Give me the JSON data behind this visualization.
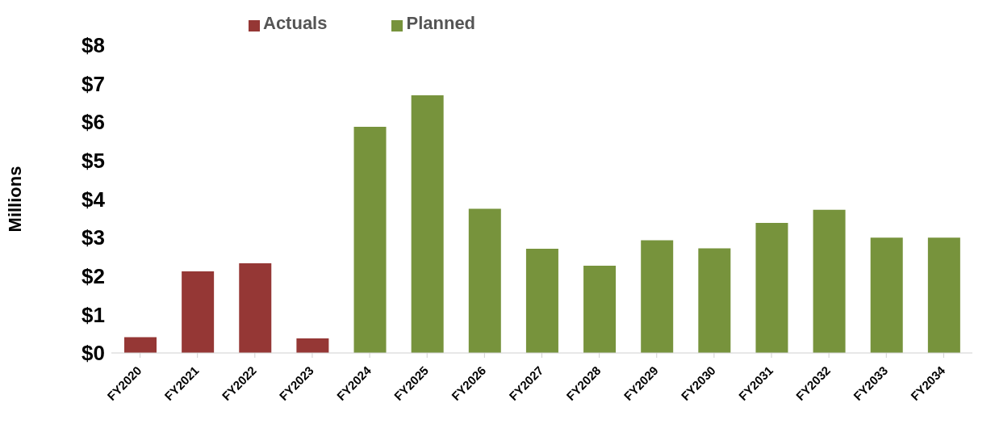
{
  "chart_data": {
    "type": "bar",
    "ylabel": "Millions",
    "categories": [
      "FY2020",
      "FY2021",
      "FY2022",
      "FY2023",
      "FY2024",
      "FY2025",
      "FY2026",
      "FY2027",
      "FY2028",
      "FY2029",
      "FY2030",
      "FY2031",
      "FY2032",
      "FY2033",
      "FY2034"
    ],
    "series": [
      {
        "name": "Actuals",
        "color": "#953735",
        "values": [
          0.41,
          2.12,
          2.33,
          0.38,
          null,
          null,
          null,
          null,
          null,
          null,
          null,
          null,
          null,
          null,
          null
        ]
      },
      {
        "name": "Planned",
        "color": "#77933c",
        "values": [
          null,
          null,
          null,
          null,
          5.88,
          6.7,
          3.75,
          2.71,
          2.27,
          2.93,
          2.72,
          3.38,
          3.72,
          3.0,
          3.0
        ]
      }
    ],
    "stacked": true,
    "ylim": [
      0,
      8
    ],
    "yticks": [
      {
        "value": 0,
        "label": "$0"
      },
      {
        "value": 1,
        "label": "$1"
      },
      {
        "value": 2,
        "label": "$2"
      },
      {
        "value": 3,
        "label": "$3"
      },
      {
        "value": 4,
        "label": "$4"
      },
      {
        "value": 5,
        "label": "$5"
      },
      {
        "value": 6,
        "label": "$6"
      },
      {
        "value": 7,
        "label": "$7"
      },
      {
        "value": 8,
        "label": "$8"
      }
    ],
    "grid": false,
    "legend": "top"
  }
}
